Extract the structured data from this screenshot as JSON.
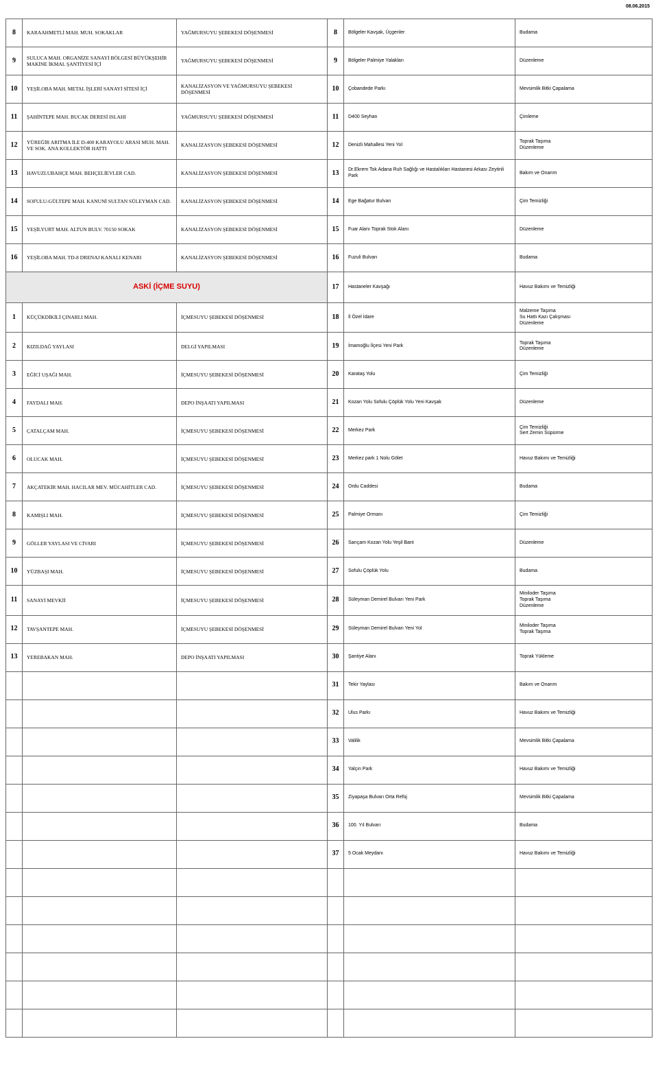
{
  "date_text": "08.06.2015",
  "section_header": "ASKİ (İÇME SUYU)",
  "top_rows": [
    {
      "n1": "8",
      "loc": "KARAAHMETLİ MAH. MUH. SOKAKLAR",
      "work": "YAĞMURSUYU ŞEBEKESİ DÖŞENMESİ",
      "n2": "8",
      "park": "Bölgeler Kavşak, Üçgenler",
      "res": "Budama"
    },
    {
      "n1": "9",
      "loc": "SULUCA MAH. ORGANİZE SANAYİ BÖLGESİ BÜYÜKŞEHİR MAKİNE İKMAL ŞANTİYESİ İÇİ",
      "work": "YAĞMURSUYU ŞEBEKESİ DÖŞENMESİ",
      "n2": "9",
      "park": "Bölgeler Palmiye Yalakları",
      "res": "Düzenleme"
    },
    {
      "n1": "10",
      "loc": "YEŞİLOBA MAH. METAL İŞLERİ SANAYİ SİTESİ İÇİ",
      "work": "KANALİZASYON VE YAĞMURSUYU ŞEBEKESİ DÖŞENMESİ",
      "n2": "10",
      "park": "Çobandede Parkı",
      "res": "Mevsimlik Bitki Çapalama"
    },
    {
      "n1": "11",
      "loc": "ŞAHİNTEPE MAH. BUCAK DERESİ ISLAHI",
      "work": "YAĞMURSUYU ŞEBEKESİ DÖŞENMESİ",
      "n2": "11",
      "park": "D400 Seyhan",
      "res": "Çimleme"
    },
    {
      "n1": "12",
      "loc": "YÜREĞİR ARITMA İLE D-400 KARAYOLU ARASI MUH. MAH. VE SOK. ANA KOLLEKTÖR HATTI",
      "work": "KANALİZASYON ŞEBEKESİ DÖŞENMESİ",
      "n2": "12",
      "park": "Denizli Mahallesi Yeni Yol",
      "res": "Toprak Taşıma\nDüzenleme"
    },
    {
      "n1": "13",
      "loc": "HAVUZLUBAHÇE MAH. BEHÇELİEVLER CAD.",
      "work": "KANALİZASYON ŞEBEKESİ DÖŞENMESİ",
      "n2": "13",
      "park": "Dr.Ekrem Tok Adana Ruh Sağlığı ve Hastalıkları Hastanesi Arkası Zeytinli Park",
      "res": "Bakım ve Onarım"
    },
    {
      "n1": "14",
      "loc": "SOFULU-GÜLTEPE MAH. KANUNİ SULTAN SÜLEYMAN CAD.",
      "work": "KANALİZASYON ŞEBEKESİ DÖŞENMESİ",
      "n2": "14",
      "park": "Ege Bağatur Bulvarı",
      "res": "Çim Temizliği"
    },
    {
      "n1": "15",
      "loc": "YEŞİLYURT MAH. ALTUN BULV. 70150 SOKAK",
      "work": "KANALİZASYON ŞEBEKESİ DÖŞENMESİ",
      "n2": "15",
      "park": "Fuar Alanı Toprak Stok Alanı",
      "res": "Düzenleme"
    },
    {
      "n1": "16",
      "loc": "YEŞİLOBA MAH. TD-8 DRENAJ KANALI KENARI",
      "work": "KANALİZASYON ŞEBEKESİ DÖŞENMESİ",
      "n2": "16",
      "park": "Fuzuli Bulvarı",
      "res": "Budama"
    }
  ],
  "section_row": {
    "n2": "17",
    "park": "Hastaneler Kavşağı",
    "res": "Havuz Bakımı ve Temizliği"
  },
  "mid_rows": [
    {
      "n1": "1",
      "loc": "KÜÇÜKDİKİLİ ÇINARLI MAH.",
      "work": "İÇMESUYU ŞEBEKESİ DÖŞENMESİ",
      "n2": "18",
      "park": "İl Özel İdare",
      "res": "Malzeme Taşıma\nSu Hattı Kazı Çalışması\nDüzenleme"
    },
    {
      "n1": "2",
      "loc": "KIZILDAĞ YAYLASI",
      "work": "DELGİ YAPILMASI",
      "n2": "19",
      "park": "İmamoğlu İlçesi Yeni Park",
      "res": "Toprak Taşıma\nDüzenleme"
    },
    {
      "n1": "3",
      "loc": "EĞİCİ UŞAĞI MAH.",
      "work": "İÇMESUYU ŞEBEKESİ DÖŞENMESİ",
      "n2": "20",
      "park": "Karataş Yolu",
      "res": "Çim Temizliği"
    },
    {
      "n1": "4",
      "loc": "FAYDALI MAH.",
      "work": "DEPO İNŞAATI YAPILMASI",
      "n2": "21",
      "park": "Kozan Yolu Sofulu Çöplük Yolu Yeni Kavşak",
      "res": "Düzenleme"
    },
    {
      "n1": "5",
      "loc": "ÇATALÇAM MAH.",
      "work": "İÇMESUYU ŞEBEKESİ DÖŞENMESİ",
      "n2": "22",
      "park": "Merkez Park",
      "res": "Çim Temizliği\nSert Zemin Süpürme"
    },
    {
      "n1": "6",
      "loc": "OLUCAK MAH.",
      "work": "İÇMESUYU ŞEBEKESİ DÖŞENMESİ",
      "n2": "23",
      "park": "Merkez park 1 Nolu Gölet",
      "res": "Havuz Bakımı ve Temizliği"
    },
    {
      "n1": "7",
      "loc": "AKÇATEKİR MAH. HACILAR MEV. MÜCAHİTLER CAD.",
      "work": "İÇMESUYU ŞEBEKESİ DÖŞENMESİ",
      "n2": "24",
      "park": "Ordu Caddesi",
      "res": "Budama"
    },
    {
      "n1": "8",
      "loc": "KAMIŞLI MAH.",
      "work": "İÇMESUYU ŞEBEKESİ DÖŞENMESİ",
      "n2": "25",
      "park": "Palmiye Ormanı",
      "res": "Çim Temizliği"
    },
    {
      "n1": "9",
      "loc": "GÖLLER YAYLASI VE CİVARI",
      "work": "İÇMESUYU ŞEBEKESİ DÖŞENMESİ",
      "n2": "26",
      "park": "Sarıçam Kozan Yolu Yeşil Bant",
      "res": "Düzenleme"
    },
    {
      "n1": "10",
      "loc": "YÜZBAŞI MAH.",
      "work": "İÇMESUYU ŞEBEKESİ DÖŞENMESİ",
      "n2": "27",
      "park": "Sofulu Çöplük Yolu",
      "res": "Budama"
    },
    {
      "n1": "11",
      "loc": "SANAYİ MEVKİİ",
      "work": "İÇMESUYU ŞEBEKESİ DÖŞENMESİ",
      "n2": "28",
      "park": "Süleyman Demirel Bulvarı Yeni Park",
      "res": "Miniloder Taşıma\nToprak Taşıma\nDüzenleme"
    },
    {
      "n1": "12",
      "loc": "TAVŞANTEPE MAH.",
      "work": "İÇMESUYU ŞEBEKESİ DÖŞENMESİ",
      "n2": "29",
      "park": "Süleyman Demirel Bulvarı Yeni Yol",
      "res": "Miniloder Taşıma\nToprak Taşıma"
    },
    {
      "n1": "13",
      "loc": "YEREBAKAN MAH.",
      "work": "DEPO İNŞAATI YAPILMASI",
      "n2": "30",
      "park": "Şantiye Alanı",
      "res": "Toprak Yükleme"
    }
  ],
  "tail_rows": [
    {
      "n2": "31",
      "park": "Tekir Yaylası",
      "res": "Bakım ve Onarım"
    },
    {
      "n2": "32",
      "park": "Ulus Parkı",
      "res": "Havuz Bakımı ve Temizliği"
    },
    {
      "n2": "33",
      "park": "Valilik",
      "res": "Mevsimlik Bitki Çapalama"
    },
    {
      "n2": "34",
      "park": "Yalçın Park",
      "res": "Havuz Bakımı ve Temizliği"
    },
    {
      "n2": "35",
      "park": "Ziyapaşa Bulvarı Orta Refüj",
      "res": "Mevsimlik Bitki Çapalama"
    },
    {
      "n2": "36",
      "park": "100. Yıl Bulvarı",
      "res": "Budama"
    },
    {
      "n2": "37",
      "park": "5 Ocak Meydanı",
      "res": "Havuz Bakımı ve Temizliği"
    }
  ],
  "empty_row_count": 6
}
